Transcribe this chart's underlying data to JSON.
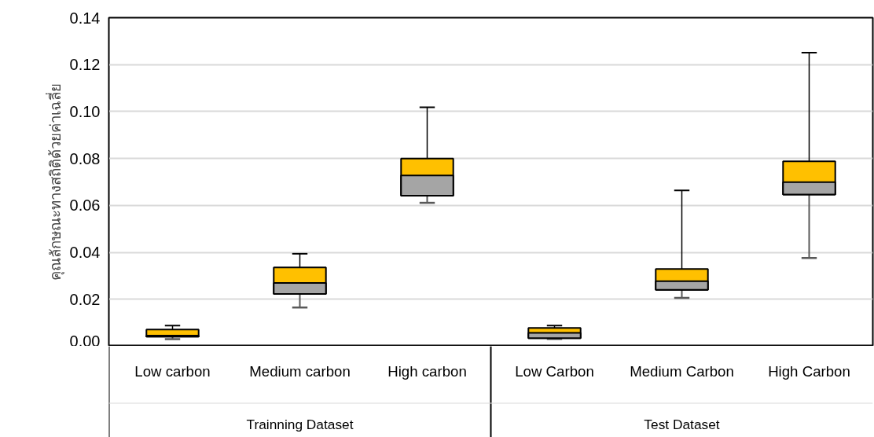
{
  "chart_data": {
    "type": "box",
    "ylabel": "คุณลักษณะทางสถิติด้วยค่าเฉลี่ย",
    "categories": [
      "Low carbon",
      "Medium carbon",
      "High carbon",
      "Low Carbon",
      "Medium Carbon",
      "High Carbon"
    ],
    "annotations": [
      "Trainning Dataset",
      "Test Dataset"
    ],
    "colors": [
      "#ffc000",
      "#ffc000",
      "#ffc000",
      "#ffc000",
      "#ffc000",
      "#ffc000"
    ],
    "boxes": [
      {
        "low": 0.003,
        "q1": 0.0041,
        "median": 0.0045,
        "q3": 0.0071,
        "high": 0.0088
      },
      {
        "low": 0.0165,
        "q1": 0.0223,
        "median": 0.027,
        "q3": 0.0336,
        "high": 0.0394
      },
      {
        "low": 0.0611,
        "q1": 0.0641,
        "median": 0.0728,
        "q3": 0.08,
        "high": 0.1018
      },
      {
        "low": 0.0031,
        "q1": 0.0034,
        "median": 0.0057,
        "q3": 0.0078,
        "high": 0.0088
      },
      {
        "low": 0.0206,
        "q1": 0.024,
        "median": 0.0277,
        "q3": 0.0329,
        "high": 0.0664
      },
      {
        "low": 0.0376,
        "q1": 0.0646,
        "median": 0.0699,
        "q3": 0.0788,
        "high": 0.1251
      }
    ],
    "ylim": [
      0,
      0.14
    ],
    "yticks": [
      {
        "value": 0,
        "label": "0.00"
      },
      {
        "value": 0.02,
        "label": "0.02"
      },
      {
        "value": 0.04,
        "label": "0.04"
      },
      {
        "value": 0.06,
        "label": "0.06"
      },
      {
        "value": 0.08,
        "label": "0.08"
      },
      {
        "value": 0.1,
        "label": "0.10"
      },
      {
        "value": 0.12,
        "label": "0.12"
      },
      {
        "value": 0.14,
        "label": "0.14"
      }
    ],
    "grid": "y"
  }
}
